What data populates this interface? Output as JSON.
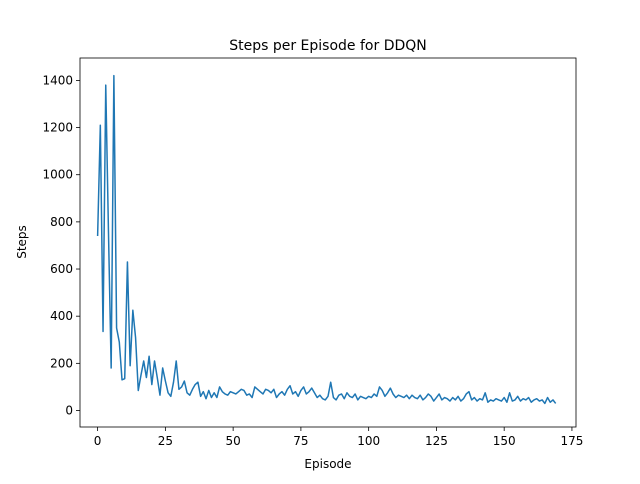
{
  "chart_data": {
    "type": "line",
    "title": "Steps per Episode for DDQN",
    "xlabel": "Episode",
    "ylabel": "Steps",
    "xlim": [
      -6.5,
      176.5
    ],
    "ylim": [
      -70,
      1495
    ],
    "xticks": [
      0,
      25,
      50,
      75,
      100,
      125,
      150,
      175
    ],
    "yticks": [
      0,
      200,
      400,
      600,
      800,
      1000,
      1200,
      1400
    ],
    "grid": false,
    "legend": "none",
    "series": [
      {
        "color": "#1f77b4",
        "x": [
          0,
          1,
          2,
          3,
          4,
          5,
          6,
          7,
          8,
          9,
          10,
          11,
          12,
          13,
          14,
          15,
          16,
          17,
          18,
          19,
          20,
          21,
          22,
          23,
          24,
          25,
          26,
          27,
          28,
          29,
          30,
          31,
          32,
          33,
          34,
          35,
          36,
          37,
          38,
          39,
          40,
          41,
          42,
          43,
          44,
          45,
          46,
          47,
          48,
          49,
          50,
          51,
          52,
          53,
          54,
          55,
          56,
          57,
          58,
          59,
          60,
          61,
          62,
          63,
          64,
          65,
          66,
          67,
          68,
          69,
          70,
          71,
          72,
          73,
          74,
          75,
          76,
          77,
          78,
          79,
          80,
          81,
          82,
          83,
          84,
          85,
          86,
          87,
          88,
          89,
          90,
          91,
          92,
          93,
          94,
          95,
          96,
          97,
          98,
          99,
          100,
          101,
          102,
          103,
          104,
          105,
          106,
          107,
          108,
          109,
          110,
          111,
          112,
          113,
          114,
          115,
          116,
          117,
          118,
          119,
          120,
          121,
          122,
          123,
          124,
          125,
          126,
          127,
          128,
          129,
          130,
          131,
          132,
          133,
          134,
          135,
          136,
          137,
          138,
          139,
          140,
          141,
          142,
          143,
          144,
          145,
          146,
          147,
          148,
          149,
          150,
          151,
          152,
          153,
          154,
          155,
          156,
          157,
          158,
          159,
          160,
          161,
          162,
          163,
          164,
          165,
          166,
          167,
          168,
          169
        ],
        "values": [
          740,
          1210,
          335,
          1380,
          760,
          180,
          1420,
          350,
          290,
          130,
          135,
          630,
          190,
          425,
          310,
          85,
          150,
          210,
          140,
          230,
          110,
          210,
          140,
          65,
          180,
          125,
          75,
          60,
          120,
          210,
          90,
          100,
          125,
          75,
          65,
          90,
          110,
          120,
          60,
          80,
          50,
          85,
          55,
          75,
          55,
          100,
          80,
          70,
          65,
          80,
          75,
          70,
          80,
          90,
          85,
          65,
          70,
          55,
          100,
          90,
          80,
          70,
          90,
          85,
          75,
          90,
          55,
          70,
          80,
          65,
          90,
          105,
          70,
          80,
          60,
          85,
          100,
          70,
          80,
          95,
          75,
          55,
          65,
          50,
          45,
          60,
          120,
          55,
          45,
          65,
          70,
          50,
          75,
          60,
          55,
          70,
          45,
          60,
          55,
          50,
          60,
          55,
          70,
          60,
          100,
          85,
          60,
          75,
          95,
          70,
          55,
          65,
          60,
          55,
          65,
          50,
          65,
          55,
          50,
          65,
          45,
          55,
          70,
          60,
          40,
          55,
          70,
          45,
          55,
          50,
          40,
          55,
          45,
          60,
          40,
          50,
          70,
          80,
          45,
          55,
          40,
          50,
          45,
          75,
          35,
          45,
          40,
          50,
          45,
          40,
          55,
          35,
          75,
          40,
          45,
          60,
          40,
          50,
          45,
          55,
          35,
          45,
          50,
          40,
          45,
          30,
          55,
          35,
          45,
          30
        ]
      }
    ]
  }
}
